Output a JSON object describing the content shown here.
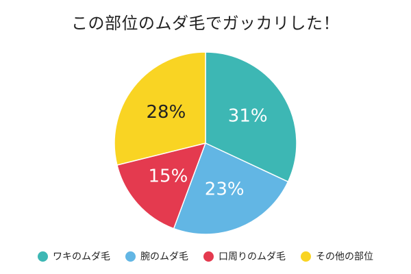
{
  "chart_data": {
    "type": "pie",
    "title": "この部位のムダ毛でガッカリした！",
    "slices": [
      {
        "label": "ワキのムダ毛",
        "value": 31,
        "display": "31%",
        "color": "#3DB7B4"
      },
      {
        "label": "腕のムダ毛",
        "value": 23,
        "display": "23%",
        "color": "#62B6E4"
      },
      {
        "label": "口周りのムダ毛",
        "value": 15,
        "display": "15%",
        "color": "#E43A4F"
      },
      {
        "label": "その他の部位",
        "value": 28,
        "display": "28%",
        "color": "#F9D423"
      }
    ],
    "legend_position": "bottom",
    "start": "12 o'clock",
    "direction": "clockwise"
  }
}
